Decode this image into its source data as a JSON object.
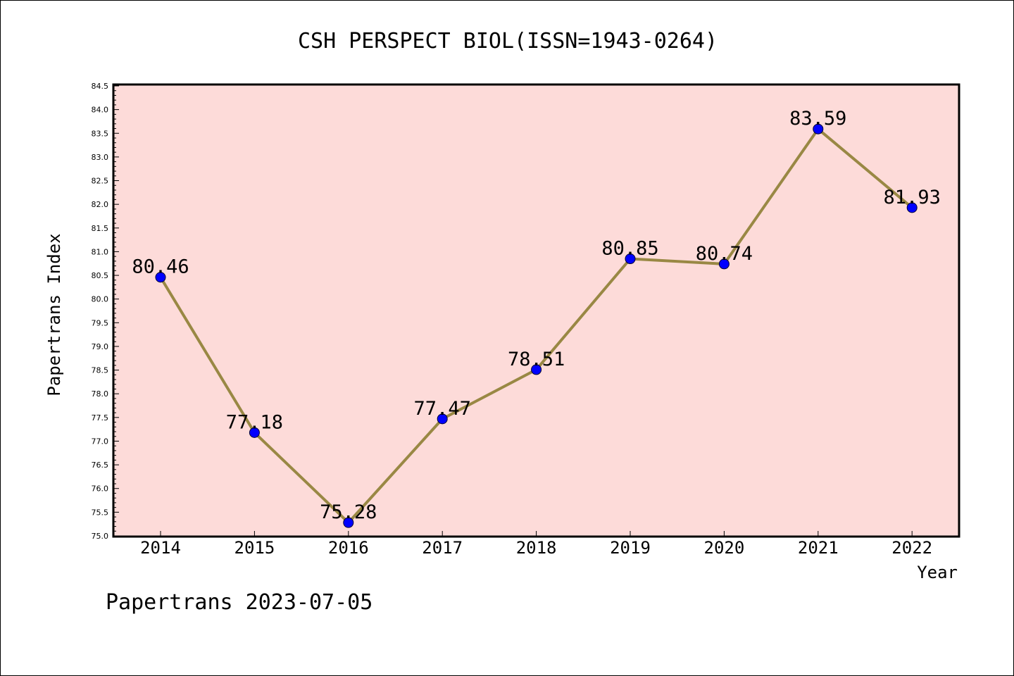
{
  "chart_data": {
    "type": "line",
    "title": "CSH PERSPECT BIOL(ISSN=1943-0264)",
    "xlabel": "Year",
    "ylabel": "Papertrans Index",
    "categories": [
      "2014",
      "2015",
      "2016",
      "2017",
      "2018",
      "2019",
      "2020",
      "2021",
      "2022"
    ],
    "series": [
      {
        "values": [
          80.46,
          77.18,
          75.28,
          77.47,
          78.51,
          80.85,
          80.74,
          83.59,
          81.93
        ],
        "data_labels": [
          "80.46",
          "77.18",
          "75.28",
          "77.47",
          "78.51",
          "80.85",
          "80.74",
          "83.59",
          "81.93"
        ],
        "line_color": "#998844",
        "marker_color": "#0000ff"
      }
    ],
    "ylim": [
      75.0,
      84.5
    ],
    "yticks": [
      "75.0",
      "75.5",
      "76.0",
      "76.5",
      "77.0",
      "77.5",
      "78.0",
      "78.5",
      "79.0",
      "79.5",
      "80.0",
      "80.5",
      "81.0",
      "81.5",
      "82.0",
      "82.5",
      "83.0",
      "83.5",
      "84.0",
      "84.5"
    ],
    "grid": false,
    "legend": "none",
    "plot_background": "#fddbd9",
    "footer": "Papertrans 2023-07-05"
  }
}
